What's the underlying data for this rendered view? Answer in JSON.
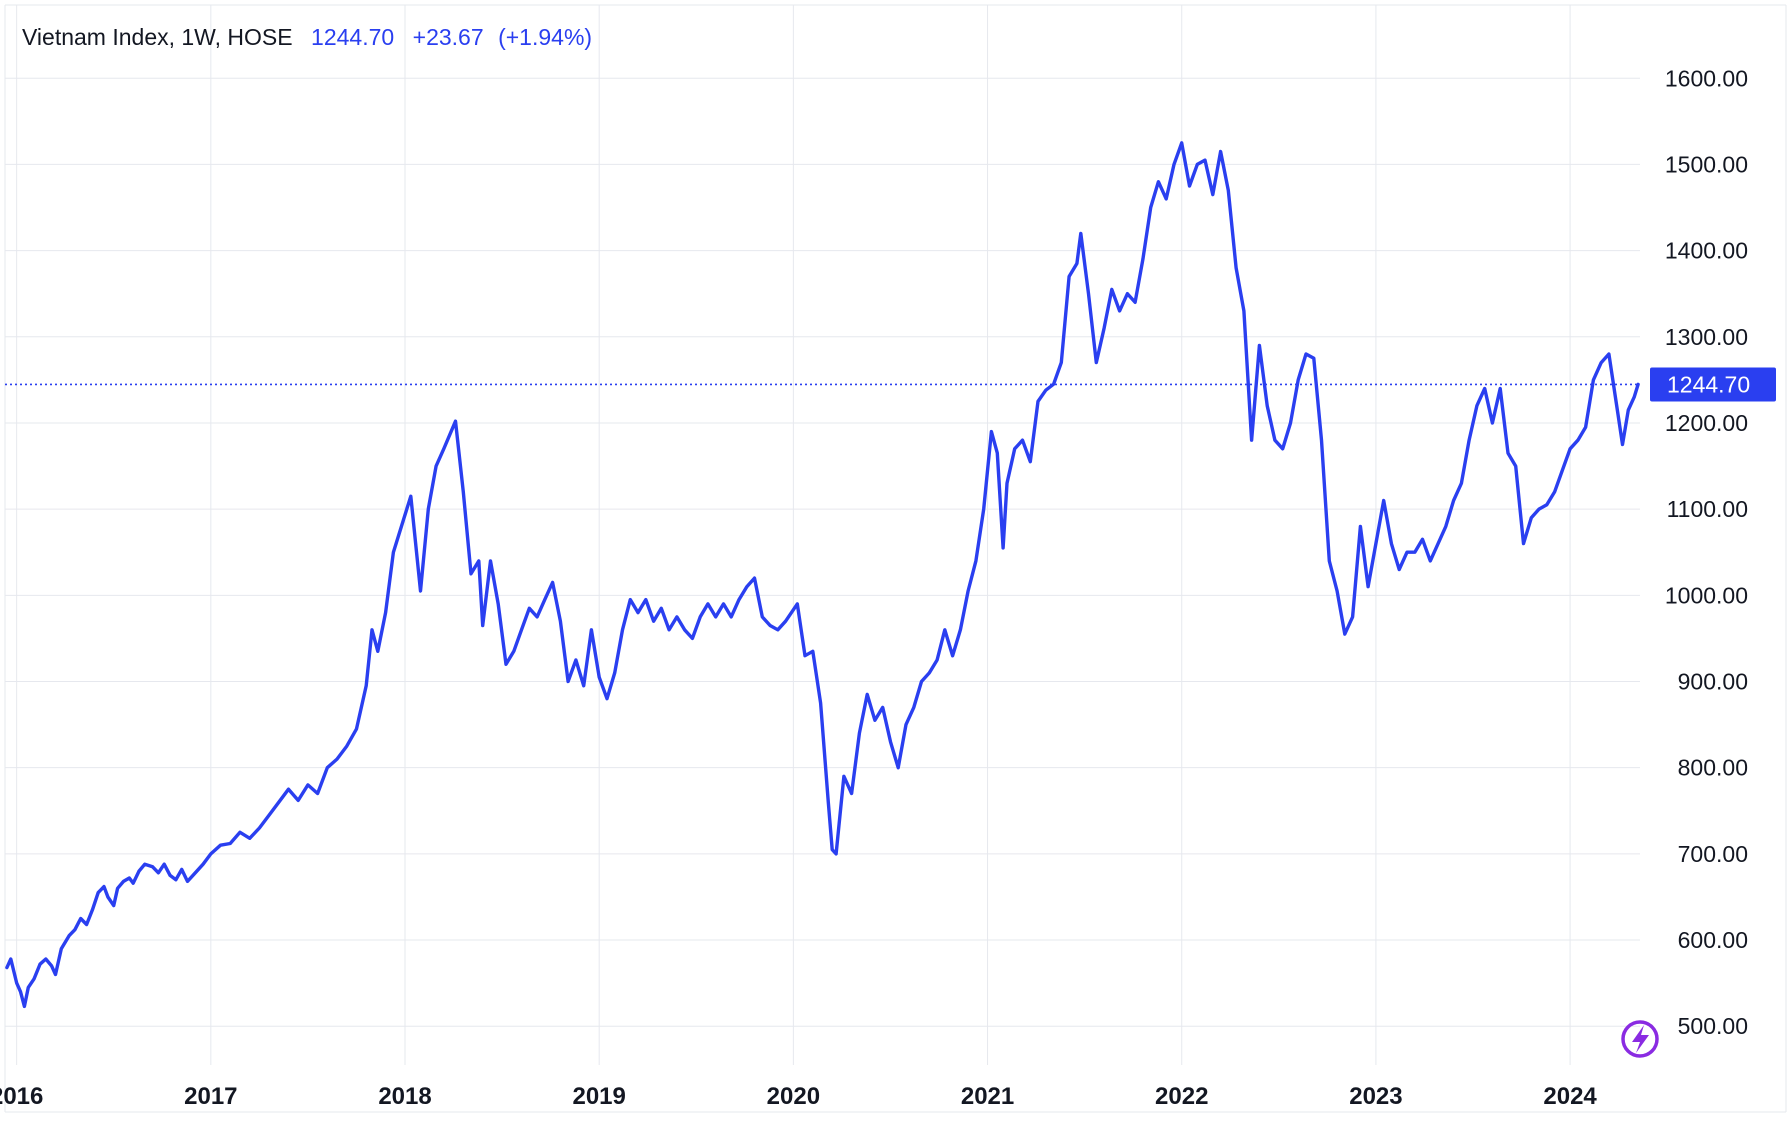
{
  "legend": {
    "symbol": "Vietnam Index, 1W, HOSE",
    "last": "1244.70",
    "change": "+23.67",
    "change_pct": "(+1.94%)"
  },
  "price_tag": "1244.70",
  "colors": {
    "line": "#2a3ff0",
    "tag_bg": "#2a3ff0",
    "grid": "#e6e8ee",
    "logo": "#8a2be2"
  },
  "logo_icon": "lightning-bolt-icon",
  "chart_data": {
    "type": "line",
    "title": "",
    "xlabel": "",
    "ylabel": "",
    "ylim": [
      455,
      1685
    ],
    "xlim": [
      2015.94,
      2024.36
    ],
    "grid": true,
    "y_ticks": [
      "500.00",
      "600.00",
      "700.00",
      "800.00",
      "900.00",
      "1000.00",
      "1100.00",
      "1200.00",
      "1300.00",
      "1400.00",
      "1500.00",
      "1600.00"
    ],
    "x_ticks": [
      {
        "label": "2016",
        "value": 2016
      },
      {
        "label": "2017",
        "value": 2017
      },
      {
        "label": "2018",
        "value": 2018
      },
      {
        "label": "2019",
        "value": 2019
      },
      {
        "label": "2020",
        "value": 2020
      },
      {
        "label": "2021",
        "value": 2021
      },
      {
        "label": "2022",
        "value": 2022
      },
      {
        "label": "2023",
        "value": 2023
      },
      {
        "label": "2024",
        "value": 2024
      }
    ],
    "current_price": 1244.7,
    "series": [
      {
        "values": [
          [
            2015.95,
            568
          ],
          [
            2015.97,
            578
          ],
          [
            2016.0,
            550
          ],
          [
            2016.02,
            540
          ],
          [
            2016.04,
            523
          ],
          [
            2016.06,
            545
          ],
          [
            2016.09,
            555
          ],
          [
            2016.12,
            572
          ],
          [
            2016.15,
            578
          ],
          [
            2016.18,
            570
          ],
          [
            2016.2,
            560
          ],
          [
            2016.23,
            590
          ],
          [
            2016.27,
            605
          ],
          [
            2016.3,
            612
          ],
          [
            2016.33,
            625
          ],
          [
            2016.36,
            618
          ],
          [
            2016.39,
            635
          ],
          [
            2016.42,
            655
          ],
          [
            2016.45,
            662
          ],
          [
            2016.47,
            650
          ],
          [
            2016.5,
            640
          ],
          [
            2016.52,
            660
          ],
          [
            2016.55,
            668
          ],
          [
            2016.58,
            672
          ],
          [
            2016.6,
            666
          ],
          [
            2016.63,
            680
          ],
          [
            2016.66,
            688
          ],
          [
            2016.7,
            685
          ],
          [
            2016.73,
            678
          ],
          [
            2016.76,
            688
          ],
          [
            2016.79,
            675
          ],
          [
            2016.82,
            670
          ],
          [
            2016.85,
            682
          ],
          [
            2016.88,
            668
          ],
          [
            2016.92,
            678
          ],
          [
            2016.96,
            688
          ],
          [
            2017.0,
            700
          ],
          [
            2017.05,
            710
          ],
          [
            2017.1,
            712
          ],
          [
            2017.15,
            725
          ],
          [
            2017.2,
            718
          ],
          [
            2017.25,
            730
          ],
          [
            2017.3,
            745
          ],
          [
            2017.35,
            760
          ],
          [
            2017.4,
            775
          ],
          [
            2017.45,
            762
          ],
          [
            2017.5,
            780
          ],
          [
            2017.55,
            770
          ],
          [
            2017.6,
            800
          ],
          [
            2017.65,
            810
          ],
          [
            2017.7,
            825
          ],
          [
            2017.75,
            845
          ],
          [
            2017.8,
            895
          ],
          [
            2017.83,
            960
          ],
          [
            2017.86,
            935
          ],
          [
            2017.9,
            980
          ],
          [
            2017.94,
            1050
          ],
          [
            2018.03,
            1115
          ],
          [
            2018.08,
            1005
          ],
          [
            2018.12,
            1100
          ],
          [
            2018.16,
            1150
          ],
          [
            2018.2,
            1170
          ],
          [
            2018.26,
            1202
          ],
          [
            2018.3,
            1120
          ],
          [
            2018.34,
            1025
          ],
          [
            2018.38,
            1040
          ],
          [
            2018.4,
            965
          ],
          [
            2018.44,
            1040
          ],
          [
            2018.48,
            990
          ],
          [
            2018.52,
            920
          ],
          [
            2018.56,
            935
          ],
          [
            2018.6,
            960
          ],
          [
            2018.64,
            985
          ],
          [
            2018.68,
            975
          ],
          [
            2018.72,
            995
          ],
          [
            2018.76,
            1015
          ],
          [
            2018.8,
            970
          ],
          [
            2018.84,
            900
          ],
          [
            2018.88,
            925
          ],
          [
            2018.92,
            895
          ],
          [
            2018.96,
            960
          ],
          [
            2019.0,
            905
          ],
          [
            2019.04,
            880
          ],
          [
            2019.08,
            910
          ],
          [
            2019.12,
            960
          ],
          [
            2019.16,
            995
          ],
          [
            2019.2,
            980
          ],
          [
            2019.24,
            995
          ],
          [
            2019.28,
            970
          ],
          [
            2019.32,
            985
          ],
          [
            2019.36,
            960
          ],
          [
            2019.4,
            975
          ],
          [
            2019.44,
            960
          ],
          [
            2019.48,
            950
          ],
          [
            2019.52,
            975
          ],
          [
            2019.56,
            990
          ],
          [
            2019.6,
            975
          ],
          [
            2019.64,
            990
          ],
          [
            2019.68,
            975
          ],
          [
            2019.72,
            995
          ],
          [
            2019.76,
            1010
          ],
          [
            2019.8,
            1020
          ],
          [
            2019.84,
            975
          ],
          [
            2019.88,
            965
          ],
          [
            2019.92,
            960
          ],
          [
            2019.96,
            970
          ],
          [
            2020.02,
            990
          ],
          [
            2020.06,
            930
          ],
          [
            2020.1,
            935
          ],
          [
            2020.14,
            875
          ],
          [
            2020.18,
            760
          ],
          [
            2020.2,
            705
          ],
          [
            2020.22,
            700
          ],
          [
            2020.26,
            790
          ],
          [
            2020.3,
            770
          ],
          [
            2020.34,
            840
          ],
          [
            2020.38,
            885
          ],
          [
            2020.42,
            855
          ],
          [
            2020.46,
            870
          ],
          [
            2020.5,
            830
          ],
          [
            2020.54,
            800
          ],
          [
            2020.58,
            850
          ],
          [
            2020.62,
            870
          ],
          [
            2020.66,
            900
          ],
          [
            2020.7,
            910
          ],
          [
            2020.74,
            925
          ],
          [
            2020.78,
            960
          ],
          [
            2020.82,
            930
          ],
          [
            2020.86,
            960
          ],
          [
            2020.9,
            1005
          ],
          [
            2020.94,
            1040
          ],
          [
            2020.98,
            1100
          ],
          [
            2021.02,
            1190
          ],
          [
            2021.05,
            1165
          ],
          [
            2021.08,
            1055
          ],
          [
            2021.1,
            1130
          ],
          [
            2021.14,
            1170
          ],
          [
            2021.18,
            1180
          ],
          [
            2021.22,
            1155
          ],
          [
            2021.26,
            1225
          ],
          [
            2021.3,
            1238
          ],
          [
            2021.34,
            1245
          ],
          [
            2021.38,
            1270
          ],
          [
            2021.42,
            1370
          ],
          [
            2021.46,
            1385
          ],
          [
            2021.48,
            1420
          ],
          [
            2021.52,
            1350
          ],
          [
            2021.56,
            1270
          ],
          [
            2021.6,
            1310
          ],
          [
            2021.64,
            1355
          ],
          [
            2021.68,
            1330
          ],
          [
            2021.72,
            1350
          ],
          [
            2021.76,
            1340
          ],
          [
            2021.8,
            1390
          ],
          [
            2021.84,
            1450
          ],
          [
            2021.88,
            1480
          ],
          [
            2021.92,
            1460
          ],
          [
            2021.96,
            1500
          ],
          [
            2022.0,
            1525
          ],
          [
            2022.04,
            1475
          ],
          [
            2022.08,
            1500
          ],
          [
            2022.12,
            1505
          ],
          [
            2022.16,
            1465
          ],
          [
            2022.2,
            1515
          ],
          [
            2022.24,
            1470
          ],
          [
            2022.28,
            1380
          ],
          [
            2022.32,
            1330
          ],
          [
            2022.36,
            1180
          ],
          [
            2022.4,
            1290
          ],
          [
            2022.44,
            1220
          ],
          [
            2022.48,
            1180
          ],
          [
            2022.52,
            1170
          ],
          [
            2022.56,
            1200
          ],
          [
            2022.6,
            1250
          ],
          [
            2022.64,
            1280
          ],
          [
            2022.68,
            1275
          ],
          [
            2022.72,
            1180
          ],
          [
            2022.76,
            1040
          ],
          [
            2022.8,
            1005
          ],
          [
            2022.84,
            955
          ],
          [
            2022.88,
            975
          ],
          [
            2022.92,
            1080
          ],
          [
            2022.96,
            1010
          ],
          [
            2023.0,
            1060
          ],
          [
            2023.04,
            1110
          ],
          [
            2023.08,
            1060
          ],
          [
            2023.12,
            1030
          ],
          [
            2023.16,
            1050
          ],
          [
            2023.2,
            1050
          ],
          [
            2023.24,
            1065
          ],
          [
            2023.28,
            1040
          ],
          [
            2023.32,
            1060
          ],
          [
            2023.36,
            1080
          ],
          [
            2023.4,
            1110
          ],
          [
            2023.44,
            1130
          ],
          [
            2023.48,
            1180
          ],
          [
            2023.52,
            1220
          ],
          [
            2023.56,
            1240
          ],
          [
            2023.6,
            1200
          ],
          [
            2023.64,
            1240
          ],
          [
            2023.68,
            1165
          ],
          [
            2023.72,
            1150
          ],
          [
            2023.76,
            1060
          ],
          [
            2023.8,
            1090
          ],
          [
            2023.84,
            1100
          ],
          [
            2023.88,
            1105
          ],
          [
            2023.92,
            1120
          ],
          [
            2023.96,
            1145
          ],
          [
            2024.0,
            1170
          ],
          [
            2024.04,
            1180
          ],
          [
            2024.08,
            1195
          ],
          [
            2024.12,
            1250
          ],
          [
            2024.16,
            1270
          ],
          [
            2024.2,
            1280
          ],
          [
            2024.24,
            1220
          ],
          [
            2024.27,
            1175
          ],
          [
            2024.3,
            1215
          ],
          [
            2024.33,
            1230
          ],
          [
            2024.35,
            1244.7
          ]
        ]
      }
    ]
  }
}
